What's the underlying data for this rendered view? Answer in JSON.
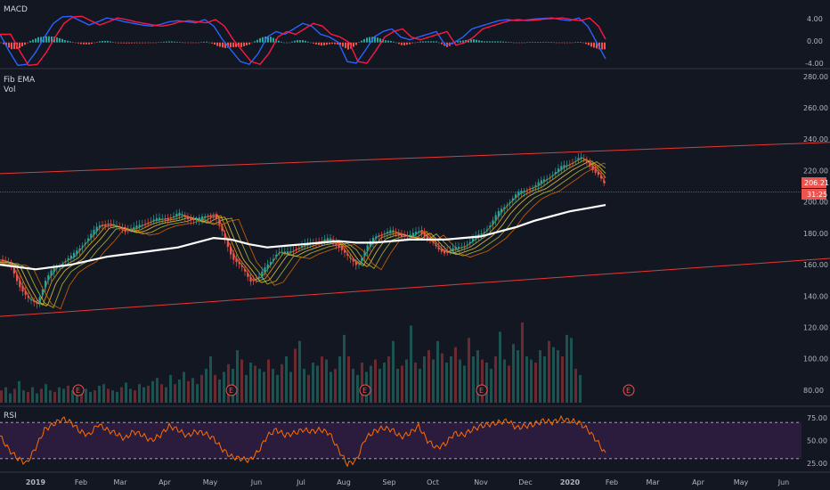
{
  "panes": {
    "macd": {
      "label": "MACD",
      "axis": [
        "4.00",
        "0.00",
        "-4.00"
      ]
    },
    "main": {
      "labels": [
        "Fib EMA",
        "Vol"
      ],
      "axis": [
        "280.00",
        "260.00",
        "240.00",
        "220.00",
        "200.00",
        "180.00",
        "160.00",
        "140.00",
        "120.00",
        "100.00",
        "80.00"
      ],
      "price_tag": "206.21",
      "countdown": "31:25"
    },
    "rsi": {
      "label": "RSI",
      "axis": [
        "75.00",
        "50.00",
        "25.00"
      ]
    }
  },
  "time_axis": [
    "2019",
    "Feb",
    "Mar",
    "Apr",
    "May",
    "Jun",
    "Jul",
    "Aug",
    "Sep",
    "Oct",
    "Nov",
    "Dec",
    "2020",
    "Feb",
    "Mar",
    "Apr",
    "May",
    "Jun"
  ],
  "earnings_marker": "E",
  "colors": {
    "background": "#131722",
    "up": "#26a69a",
    "down": "#ef5350",
    "channel": "#e53935",
    "ema200": "#ffffff",
    "macd": "#2962ff",
    "signal": "#ff1744",
    "rsi": "#ff6d00",
    "rsi_band": "#2b1b3d"
  },
  "chart_data": [
    {
      "type": "line",
      "name": "macd",
      "y_ticks": [
        4.0,
        0.0,
        -4.0
      ],
      "ylim": [
        -4.3,
        5.5
      ],
      "series": [
        {
          "x": [
            0,
            10,
            20,
            30,
            40,
            50,
            60,
            70,
            80,
            90,
            100,
            110,
            120,
            130,
            140,
            150,
            160,
            170,
            180,
            190,
            200,
            210,
            220,
            230,
            240,
            250,
            260,
            270,
            280,
            290,
            300,
            310,
            320,
            330,
            340,
            350,
            360,
            370,
            380,
            390,
            400,
            410,
            420,
            430,
            440,
            450,
            460,
            470,
            480,
            490,
            500,
            510,
            520,
            530,
            540,
            550,
            560,
            570,
            580,
            590,
            600,
            610,
            620,
            630,
            640,
            650,
            660,
            670,
            680
          ],
          "values": [
            1.5,
            -1.5,
            -4.2,
            -4.0,
            -1.8,
            1.0,
            3.5,
            4.7,
            4.8,
            4.0,
            3.2,
            3.8,
            4.5,
            4.2,
            3.8,
            3.5,
            3.2,
            3.0,
            3.3,
            3.8,
            4.0,
            3.8,
            3.6,
            4.2,
            3.0,
            0.5,
            -1.5,
            -3.5,
            -4.0,
            -2.0,
            1.0,
            2.0,
            1.5,
            2.5,
            3.5,
            3.0,
            1.5,
            1.0,
            0.0,
            -3.5,
            -3.8,
            -1.5,
            1.0,
            2.0,
            2.5,
            1.0,
            0.5,
            1.0,
            1.5,
            2.0,
            -0.5,
            0.0,
            1.0,
            2.5,
            3.0,
            3.5,
            4.0,
            4.2,
            4.0,
            4.1,
            4.3,
            4.4,
            4.5,
            4.2,
            4.0,
            4.5,
            3.0,
            0.0,
            -3.0
          ]
        }
      ]
    },
    {
      "type": "line",
      "name": "price",
      "y_ticks": [
        280,
        260,
        240,
        220,
        200,
        180,
        160,
        140,
        120,
        100,
        80
      ],
      "ylim": [
        72,
        281
      ],
      "price_last": 206.21,
      "channel_upper": [
        {
          "x": 0,
          "y": 218
        },
        {
          "x": 932,
          "y": 238
        }
      ],
      "channel_lower": [
        {
          "x": 0,
          "y": 127
        },
        {
          "x": 932,
          "y": 164
        }
      ],
      "series": [
        {
          "name": "close",
          "x": [
            0,
            10,
            20,
            30,
            40,
            50,
            60,
            70,
            80,
            90,
            100,
            110,
            120,
            130,
            140,
            150,
            160,
            170,
            180,
            190,
            200,
            210,
            220,
            230,
            240,
            250,
            260,
            270,
            280,
            290,
            300,
            310,
            320,
            330,
            340,
            350,
            360,
            370,
            380,
            390,
            400,
            410,
            420,
            430,
            440,
            450,
            460,
            470,
            480,
            490,
            500,
            510,
            520,
            530,
            540,
            550,
            560,
            570,
            580,
            590,
            600,
            610,
            620,
            630,
            640,
            650,
            660,
            670,
            680
          ],
          "values": [
            163,
            160,
            148,
            138,
            135,
            150,
            158,
            162,
            165,
            172,
            178,
            185,
            186,
            184,
            182,
            183,
            186,
            188,
            189,
            190,
            192,
            190,
            188,
            191,
            192,
            178,
            165,
            158,
            150,
            152,
            160,
            168,
            167,
            170,
            172,
            174,
            175,
            176,
            172,
            164,
            160,
            170,
            178,
            180,
            181,
            179,
            178,
            182,
            176,
            170,
            168,
            170,
            172,
            176,
            180,
            186,
            194,
            200,
            205,
            208,
            210,
            214,
            218,
            222,
            225,
            228,
            224,
            218,
            208
          ]
        },
        {
          "name": "ema200",
          "x": [
            0,
            40,
            80,
            120,
            160,
            200,
            240,
            260,
            280,
            300,
            320,
            340,
            360,
            380,
            400,
            420,
            440,
            460,
            480,
            500,
            520,
            540,
            560,
            580,
            600,
            620,
            640,
            660,
            680
          ],
          "values": [
            160,
            157,
            160,
            165,
            168,
            171,
            177,
            176,
            173,
            171,
            172,
            173,
            174,
            175,
            174,
            174,
            175,
            176,
            176,
            176,
            177,
            178,
            181,
            184,
            188,
            191,
            194,
            196,
            198
          ]
        }
      ]
    },
    {
      "type": "bar",
      "name": "volume",
      "note_values": "relative",
      "x_step": 5,
      "values": [
        8,
        10,
        6,
        9,
        14,
        8,
        7,
        10,
        6,
        9,
        12,
        8,
        7,
        10,
        9,
        11,
        8,
        6,
        10,
        9,
        7,
        8,
        11,
        12,
        9,
        8,
        7,
        10,
        13,
        9,
        8,
        12,
        10,
        11,
        14,
        16,
        12,
        10,
        18,
        12,
        15,
        20,
        14,
        16,
        12,
        18,
        22,
        30,
        18,
        15,
        20,
        25,
        22,
        34,
        28,
        18,
        26,
        24,
        22,
        20,
        28,
        22,
        18,
        25,
        30,
        20,
        35,
        40,
        22,
        18,
        26,
        24,
        30,
        28,
        20,
        22,
        30,
        44,
        30,
        22,
        18,
        26,
        20,
        24,
        28,
        22,
        26,
        30,
        40,
        22,
        24,
        28,
        50,
        26,
        22,
        30,
        34,
        28,
        40,
        32,
        26,
        30,
        36,
        28,
        24,
        42,
        30,
        34,
        28,
        26,
        22,
        30,
        46,
        28,
        24,
        38,
        34,
        52,
        30,
        28,
        26,
        34,
        30,
        40,
        36,
        34,
        30,
        44,
        42,
        22,
        18
      ],
      "earnings_x": [
        88,
        260,
        410,
        541,
        706
      ]
    },
    {
      "type": "line",
      "name": "rsi",
      "y_ticks": [
        75,
        50,
        25
      ],
      "ylim": [
        18,
        82
      ],
      "bands": [
        70,
        30
      ],
      "series": [
        {
          "x": [
            0,
            10,
            20,
            30,
            40,
            50,
            60,
            70,
            80,
            90,
            100,
            110,
            120,
            130,
            140,
            150,
            160,
            170,
            180,
            190,
            200,
            210,
            220,
            230,
            240,
            250,
            260,
            270,
            280,
            290,
            300,
            310,
            320,
            330,
            340,
            350,
            360,
            370,
            380,
            390,
            400,
            410,
            420,
            430,
            440,
            450,
            460,
            470,
            480,
            490,
            500,
            510,
            520,
            530,
            540,
            550,
            560,
            570,
            580,
            590,
            600,
            610,
            620,
            630,
            640,
            650,
            660,
            670,
            680
          ],
          "values": [
            55,
            40,
            30,
            25,
            42,
            62,
            68,
            74,
            70,
            60,
            56,
            68,
            62,
            58,
            52,
            60,
            56,
            50,
            56,
            66,
            62,
            55,
            60,
            58,
            52,
            40,
            32,
            30,
            28,
            38,
            55,
            62,
            56,
            58,
            62,
            60,
            62,
            58,
            40,
            24,
            28,
            52,
            60,
            64,
            62,
            54,
            58,
            66,
            50,
            42,
            46,
            58,
            56,
            62,
            66,
            68,
            70,
            72,
            64,
            66,
            68,
            72,
            70,
            74,
            72,
            70,
            62,
            50,
            35
          ]
        }
      ]
    }
  ]
}
